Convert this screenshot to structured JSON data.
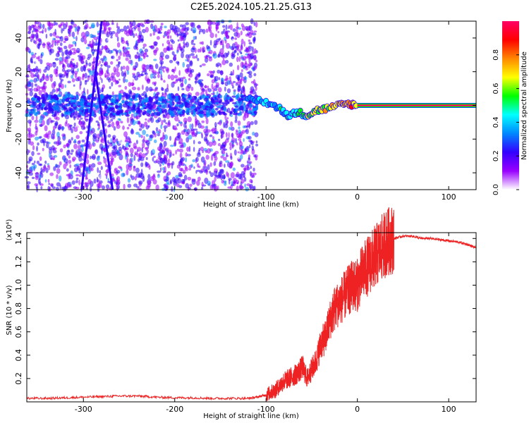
{
  "figure_title": "C2E5.2024.105.21.25.G13",
  "chart_data": [
    {
      "type": "heatmap",
      "title": "",
      "xlabel": "Height of straight line (km)",
      "ylabel": "Frequency (Hz)",
      "xlim": [
        -362,
        130
      ],
      "ylim": [
        -50,
        50
      ],
      "x_ticks": [
        -300,
        -200,
        -100,
        0,
        100
      ],
      "y_ticks": [
        -40,
        -20,
        0,
        20,
        40
      ],
      "grid": false,
      "colorbar": {
        "label": "Normalized spectral amplitude",
        "range": [
          0,
          1
        ],
        "ticks": [
          0.0,
          0.2,
          0.4,
          0.6,
          0.8
        ],
        "colormap": [
          "#ffffff",
          "#9900ff",
          "#3300ff",
          "#0088ff",
          "#00ffff",
          "#00ff00",
          "#ffff00",
          "#ff8800",
          "#ff0000",
          "#ff0066"
        ]
      },
      "features": {
        "carrier_band": {
          "x_start": 0,
          "x_end": 130,
          "frequency": 0,
          "amplitude": 0.95
        },
        "doppler_trace": [
          {
            "x": -120,
            "y": 4
          },
          {
            "x": -100,
            "y": 2
          },
          {
            "x": -85,
            "y": -2
          },
          {
            "x": -75,
            "y": -6
          },
          {
            "x": -65,
            "y": -4
          },
          {
            "x": -55,
            "y": -6
          },
          {
            "x": -45,
            "y": -3
          },
          {
            "x": -35,
            "y": -2
          },
          {
            "x": -20,
            "y": 0
          },
          {
            "x": -10,
            "y": 1
          },
          {
            "x": 0,
            "y": 0
          }
        ],
        "diagonal_streaks": [
          {
            "x1": -280,
            "y1": 50,
            "x2": -302,
            "y2": -50
          },
          {
            "x1": -287,
            "y1": 20,
            "x2": -268,
            "y2": -50
          }
        ]
      }
    },
    {
      "type": "line",
      "title": "",
      "xlabel": "Height of straight line (km)",
      "ylabel": "SNR (10 * v/v)",
      "y_multiplier": "(x10⁴)",
      "xlim": [
        -362,
        130
      ],
      "ylim": [
        0,
        1.45
      ],
      "x_ticks": [
        -300,
        -200,
        -100,
        0,
        100
      ],
      "y_ticks": [
        0.2,
        0.4,
        0.6,
        0.8,
        1.0,
        1.2,
        1.4
      ],
      "grid": false,
      "series": [
        {
          "color": "#ee2222",
          "x": [
            -362,
            -340,
            -320,
            -300,
            -280,
            -260,
            -240,
            -220,
            -200,
            -180,
            -160,
            -140,
            -120,
            -110,
            -100,
            -95,
            -90,
            -85,
            -80,
            -75,
            -70,
            -65,
            -60,
            -55,
            -50,
            -45,
            -40,
            -35,
            -30,
            -25,
            -20,
            -15,
            -10,
            -5,
            0,
            5,
            10,
            15,
            20,
            25,
            30,
            35,
            40,
            50,
            60,
            70,
            80,
            90,
            100,
            110,
            120,
            130
          ],
          "y": [
            0.03,
            0.03,
            0.035,
            0.04,
            0.045,
            0.05,
            0.05,
            0.04,
            0.035,
            0.035,
            0.03,
            0.03,
            0.03,
            0.04,
            0.06,
            0.08,
            0.1,
            0.14,
            0.18,
            0.2,
            0.22,
            0.25,
            0.3,
            0.2,
            0.28,
            0.35,
            0.5,
            0.55,
            0.7,
            0.8,
            0.85,
            0.9,
            0.95,
            1.0,
            1.0,
            1.1,
            1.15,
            1.2,
            1.25,
            1.3,
            1.35,
            1.38,
            1.4,
            1.42,
            1.42,
            1.4,
            1.4,
            1.39,
            1.38,
            1.37,
            1.35,
            1.32
          ]
        }
      ]
    }
  ]
}
